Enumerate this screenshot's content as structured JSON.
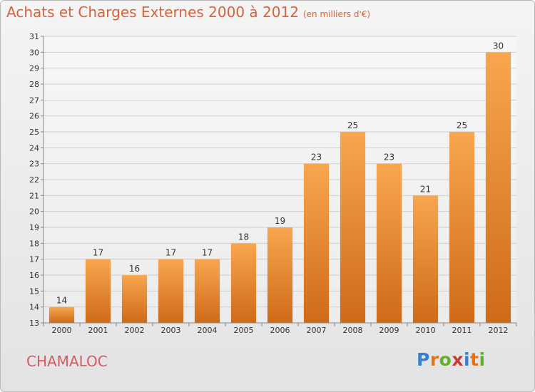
{
  "header": {
    "title": "Achats et Charges Externes 2000 à 2012",
    "unit": "(en milliers d'€)"
  },
  "footer": {
    "commune": "CHAMALOC",
    "brand": "Proxiti",
    "brand_colors": [
      "#3a7fcf",
      "#e6711c",
      "#62b02e",
      "#c43a3a",
      "#3a7fcf",
      "#e6711c",
      "#62b02e"
    ]
  },
  "colors": {
    "title": "#d8633a",
    "commune": "#d45b66",
    "bar_top": "#f8a64f",
    "bar_bottom": "#cf6a18",
    "grid": "#cfcfcf",
    "axis_text": "#333333"
  },
  "chart_data": {
    "type": "bar",
    "categories": [
      "2000",
      "2001",
      "2002",
      "2003",
      "2004",
      "2005",
      "2006",
      "2007",
      "2008",
      "2009",
      "2010",
      "2011",
      "2012"
    ],
    "values": [
      14,
      17,
      16,
      17,
      17,
      18,
      19,
      23,
      25,
      23,
      21,
      25,
      30
    ],
    "ylim": [
      13,
      31
    ],
    "yticks": [
      13,
      14,
      15,
      16,
      17,
      18,
      19,
      20,
      21,
      22,
      23,
      24,
      25,
      26,
      27,
      28,
      29,
      30,
      31
    ],
    "grid": true,
    "data_labels": true
  }
}
